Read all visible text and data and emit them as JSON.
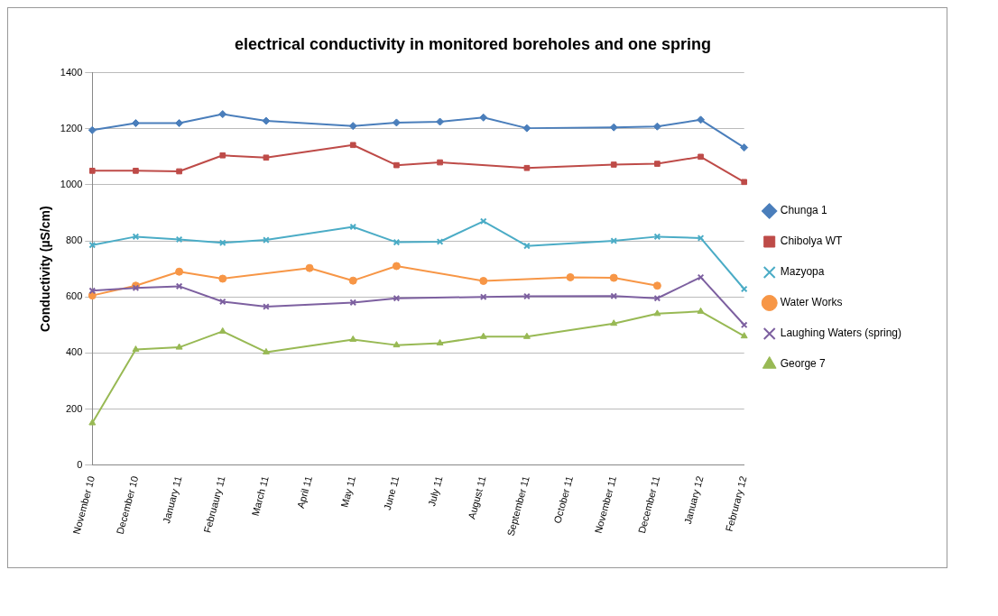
{
  "chart_data": {
    "type": "line",
    "title": "electrical conductivity in monitored boreholes and one spring",
    "ylabel": "Conductivity (µS/cm)",
    "categories": [
      "November 10",
      "December 10",
      "January 11",
      "Februaury 11",
      "March 11",
      "April 11",
      "May 11",
      "June 11",
      "July 11",
      "August 11",
      "September 11",
      "October 11",
      "November 11",
      "December 11",
      "January 12",
      "Februrary 12"
    ],
    "series": [
      {
        "name": "Chunga 1",
        "color": "#4a7ebb",
        "marker": "diamond",
        "values": [
          1195,
          1220,
          1220,
          1252,
          1228,
          null,
          1210,
          1222,
          1225,
          1240,
          1202,
          null,
          1205,
          1208,
          1232,
          1133
        ]
      },
      {
        "name": "Chibolya WT",
        "color": "#be4b48",
        "marker": "square",
        "values": [
          1050,
          1050,
          1048,
          1105,
          1097,
          null,
          1142,
          1070,
          1080,
          null,
          1060,
          null,
          1072,
          1075,
          1100,
          1010
        ]
      },
      {
        "name": "Mazyopa",
        "color": "#4bacc6",
        "marker": "cross",
        "values": [
          785,
          815,
          805,
          793,
          803,
          null,
          850,
          795,
          797,
          870,
          782,
          null,
          800,
          815,
          810,
          628
        ]
      },
      {
        "name": "Water Works",
        "color": "#f79646",
        "marker": "circle",
        "values": [
          605,
          640,
          690,
          665,
          null,
          703,
          658,
          710,
          null,
          657,
          null,
          670,
          668,
          640,
          null,
          null
        ]
      },
      {
        "name": "Laughing Waters (spring)",
        "color": "#7d60a0",
        "marker": "cross",
        "values": [
          622,
          632,
          638,
          583,
          565,
          null,
          580,
          595,
          null,
          600,
          602,
          null,
          603,
          595,
          670,
          500
        ]
      },
      {
        "name": "George 7",
        "color": "#98b954",
        "marker": "triangle",
        "values": [
          150,
          412,
          420,
          477,
          403,
          null,
          448,
          428,
          435,
          458,
          458,
          null,
          505,
          540,
          548,
          460
        ]
      }
    ],
    "ylim": [
      0,
      1400
    ],
    "yticks": [
      0,
      200,
      400,
      600,
      800,
      1000,
      1200,
      1400
    ],
    "grid": "y",
    "legend": "right"
  }
}
